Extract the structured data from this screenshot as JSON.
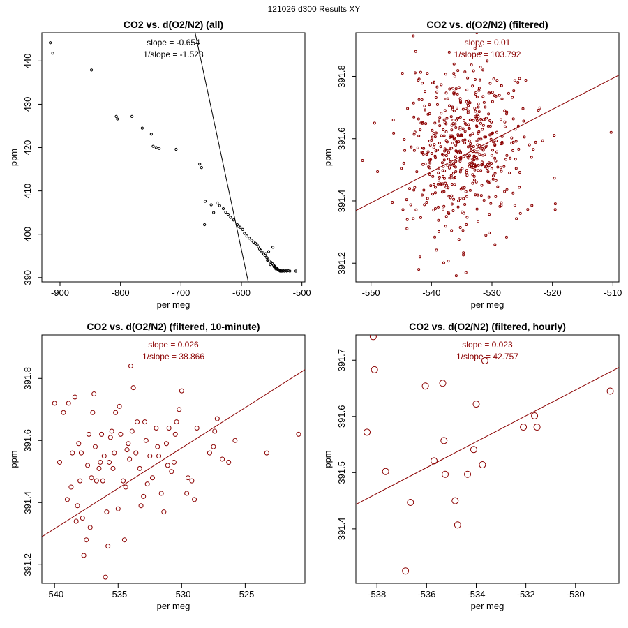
{
  "page_title": "121026   d300   Results XY",
  "colors": {
    "black": "#000000",
    "red": "#8b0000"
  },
  "chart_data": [
    {
      "type": "scatter",
      "title": "CO2 vs. d(O2/N2) (all)",
      "xlabel": "per meg",
      "ylabel": "ppm",
      "xlim": [
        -930,
        -495
      ],
      "ylim": [
        389,
        446.5
      ],
      "xticks": [
        -900,
        -800,
        -700,
        -600,
        -500
      ],
      "yticks": [
        390,
        400,
        410,
        420,
        430,
        440
      ],
      "annotations": [
        "slope = -0.654",
        "1/slope = -1.528"
      ],
      "fit": {
        "slope": -0.654,
        "x_range": [
          -935,
          -493
        ]
      },
      "color": "#000000",
      "marker_r": 1.6,
      "series": [
        {
          "name": "all",
          "x": [
            -916,
            -912,
            -848,
            -807,
            -805,
            -781,
            -764,
            -749,
            -746,
            -741,
            -736,
            -708,
            -669,
            -666,
            -661,
            -660,
            -650,
            -646,
            -640,
            -636,
            -630,
            -626,
            -622,
            -618,
            -613,
            -607,
            -605,
            -602,
            -598,
            -595,
            -591,
            -587,
            -583,
            -580,
            -577,
            -574,
            -572,
            -570,
            -568,
            -566,
            -563,
            -561,
            -558,
            -556,
            -553,
            -551,
            -549,
            -547,
            -545,
            -544,
            -542,
            -541,
            -540,
            -539,
            -538,
            -537,
            -536,
            -535,
            -534,
            -533,
            -531,
            -529,
            -527,
            -525,
            -523,
            -520,
            -510,
            -555,
            -548,
            -560,
            -557,
            -552,
            -546,
            -543
          ],
          "y": [
            444.2,
            441.8,
            437.9,
            427.2,
            426.6,
            427.2,
            424.5,
            423.1,
            420.3,
            420.0,
            419.8,
            419.6,
            416.2,
            415.4,
            402.2,
            407.6,
            406.8,
            405.0,
            407.2,
            406.6,
            405.9,
            405.1,
            404.6,
            403.9,
            403.3,
            402.2,
            401.8,
            401.6,
            401.1,
            400.2,
            399.6,
            399.1,
            398.6,
            398.2,
            397.9,
            397.6,
            397.1,
            396.6,
            396.3,
            395.9,
            395.4,
            395.1,
            394.6,
            394.2,
            393.8,
            393.5,
            393.2,
            392.9,
            392.6,
            392.4,
            392.2,
            392.0,
            391.9,
            391.8,
            391.7,
            391.6,
            391.5,
            391.6,
            391.5,
            391.5,
            391.6,
            391.5,
            391.6,
            391.5,
            391.6,
            391.5,
            391.5,
            396.0,
            397.0,
            395.5,
            394.0,
            393.0,
            392.5,
            392.0
          ]
        }
      ]
    },
    {
      "type": "scatter",
      "title": "CO2 vs. d(O2/N2) (filtered)",
      "xlabel": "per meg",
      "ylabel": "ppm",
      "xlim": [
        -552.5,
        -509
      ],
      "ylim": [
        391.14,
        391.94
      ],
      "xticks": [
        -550,
        -540,
        -530,
        -520,
        -510
      ],
      "yticks": [
        391.2,
        391.4,
        391.6,
        391.8
      ],
      "annotations": [
        "slope = 0.01",
        "1/slope = 103.792"
      ],
      "fit": {
        "slope": 0.01,
        "x_range": [
          -553,
          -508
        ],
        "anchor": [
          -533,
          391.564
        ]
      },
      "color": "#8b0000",
      "marker_r": 1.5,
      "series": [
        {
          "name": "filtered",
          "x": [
            -551.4,
            -549.4,
            -546.3,
            -543.0,
            -542.6,
            -541.9,
            -542.1,
            -534.7,
            -532.8,
            -532.5,
            -531.9,
            -530.6,
            -528.4,
            -535.9,
            -534.3,
            -533.1,
            -529.5,
            -523.8,
            -519.7,
            -510.3,
            -544.8,
            -540.3,
            -538.2,
            -537.5,
            -536.6,
            -535.2,
            -531.0,
            -527.1,
            -525.3,
            -544.0,
            -539.1,
            -529.8,
            -527.9
          ],
          "y": [
            391.53,
            391.65,
            391.66,
            391.93,
            391.88,
            391.22,
            391.18,
            391.97,
            391.89,
            391.94,
            391.83,
            391.64,
            391.77,
            391.16,
            391.17,
            391.52,
            391.26,
            391.58,
            391.61,
            391.62,
            391.81,
            391.68,
            391.55,
            391.45,
            391.39,
            391.72,
            391.29,
            391.49,
            391.36,
            391.34,
            391.75,
            391.47,
            391.69
          ]
        }
      ],
      "cloud": {
        "n": 520,
        "x_mean": -534.5,
        "x_sd": 4.8,
        "y_mean": 391.57,
        "y_sd": 0.13,
        "seed": 7
      }
    },
    {
      "type": "scatter",
      "title": "CO2 vs. d(O2/N2) (filtered, 10-minute)",
      "xlabel": "per meg",
      "ylabel": "ppm",
      "xlim": [
        -541,
        -520.3
      ],
      "ylim": [
        391.14,
        391.94
      ],
      "xticks": [
        -540,
        -535,
        -530,
        -525
      ],
      "yticks": [
        391.2,
        391.4,
        391.6,
        391.8
      ],
      "annotations": [
        "slope = 0.026",
        "1/slope = 38.866"
      ],
      "fit": {
        "slope": 0.026,
        "x_range": [
          -541,
          -520
        ],
        "anchor": [
          -530,
          391.576
        ]
      },
      "color": "#8b0000",
      "marker_r": 3.0,
      "series": [
        {
          "name": "10-minute",
          "x": [
            -540.0,
            -539.6,
            -539.0,
            -538.9,
            -538.6,
            -538.4,
            -538.3,
            -538.2,
            -538.0,
            -537.9,
            -537.7,
            -537.5,
            -537.3,
            -537.2,
            -537.1,
            -537.0,
            -536.9,
            -536.7,
            -536.5,
            -536.4,
            -536.3,
            -536.2,
            -536.0,
            -535.9,
            -535.8,
            -535.7,
            -535.5,
            -535.4,
            -535.2,
            -535.0,
            -534.9,
            -534.8,
            -534.6,
            -534.5,
            -534.4,
            -534.2,
            -534.0,
            -533.8,
            -533.6,
            -533.5,
            -533.2,
            -533.0,
            -532.8,
            -532.5,
            -532.3,
            -532.0,
            -531.8,
            -531.6,
            -531.4,
            -531.2,
            -531.0,
            -530.8,
            -530.6,
            -530.5,
            -530.2,
            -530.0,
            -529.6,
            -529.2,
            -529.0,
            -528.8,
            -527.8,
            -527.5,
            -527.2,
            -526.3,
            -525.8,
            -523.3,
            -520.8,
            -538.1,
            -537.8,
            -536.8,
            -535.6,
            -535.3,
            -534.1,
            -533.9,
            -533.3,
            -532.7,
            -531.9,
            -531.1,
            -530.4,
            -529.5,
            -527.4,
            -526.8,
            -539.3,
            -538.7,
            -537.4,
            -536.1,
            -534.3,
            -532.9
          ],
          "y": [
            391.72,
            391.53,
            391.41,
            391.72,
            391.56,
            391.74,
            391.34,
            391.39,
            391.47,
            391.56,
            391.23,
            391.28,
            391.62,
            391.32,
            391.48,
            391.69,
            391.75,
            391.47,
            391.51,
            391.53,
            391.62,
            391.47,
            391.16,
            391.37,
            391.26,
            391.53,
            391.63,
            391.51,
            391.69,
            391.38,
            391.71,
            391.62,
            391.47,
            391.28,
            391.45,
            391.59,
            391.84,
            391.77,
            391.56,
            391.66,
            391.39,
            391.42,
            391.6,
            391.55,
            391.48,
            391.64,
            391.55,
            391.43,
            391.37,
            391.59,
            391.64,
            391.5,
            391.53,
            391.62,
            391.7,
            391.76,
            391.43,
            391.47,
            391.41,
            391.64,
            391.56,
            391.58,
            391.67,
            391.53,
            391.6,
            391.56,
            391.62,
            391.59,
            391.35,
            391.58,
            391.61,
            391.56,
            391.54,
            391.63,
            391.51,
            391.46,
            391.58,
            391.52,
            391.66,
            391.48,
            391.63,
            391.54,
            391.69,
            391.45,
            391.52,
            391.55,
            391.57,
            391.66
          ]
        }
      ]
    },
    {
      "type": "scatter",
      "title": "CO2 vs. d(O2/N2) (filtered, hourly)",
      "xlabel": "per meg",
      "ylabel": "ppm",
      "xlim": [
        -538.85,
        -528.25
      ],
      "ylim": [
        391.303,
        391.745
      ],
      "xticks": [
        -538,
        -536,
        -534,
        -532,
        -530
      ],
      "yticks": [
        391.4,
        391.5,
        391.6,
        391.7
      ],
      "annotations": [
        "slope = 0.023",
        "1/slope = 42.757"
      ],
      "fit": {
        "slope": 0.023,
        "x_range": [
          -539,
          -528
        ],
        "anchor": [
          -534,
          391.555
        ]
      },
      "color": "#8b0000",
      "marker_r": 4.5,
      "series": [
        {
          "name": "hourly",
          "x": [
            -538.4,
            -538.15,
            -538.1,
            -537.65,
            -536.85,
            -536.65,
            -536.05,
            -535.7,
            -535.35,
            -535.3,
            -535.25,
            -534.85,
            -534.75,
            -534.35,
            -534.1,
            -534.0,
            -533.75,
            -533.65,
            -532.1,
            -531.65,
            -531.55,
            -528.6
          ],
          "y": [
            391.572,
            391.742,
            391.683,
            391.502,
            391.325,
            391.447,
            391.654,
            391.521,
            391.659,
            391.557,
            391.497,
            391.45,
            391.407,
            391.497,
            391.541,
            391.622,
            391.514,
            391.699,
            391.581,
            391.601,
            391.581,
            391.645
          ]
        }
      ]
    }
  ]
}
